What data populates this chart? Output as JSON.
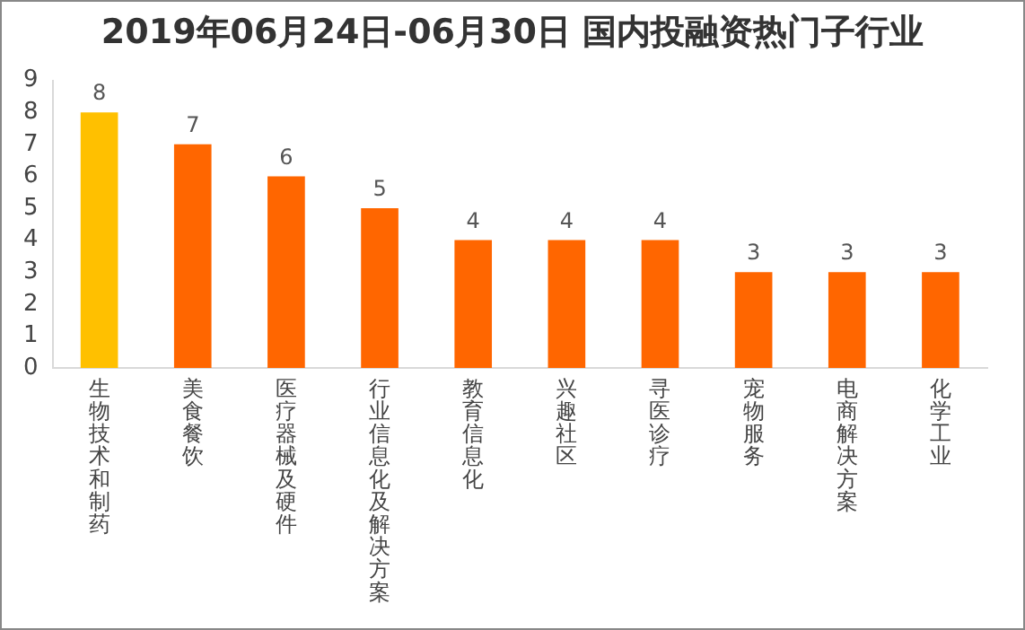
{
  "chart_data": {
    "type": "bar",
    "title": "2019年06月24日-06月30日 国内投融资热门子行业",
    "categories": [
      "生物技术和制药",
      "美食餐饮",
      "医疗器械及硬件",
      "行业信息化及解决方案",
      "教育信息化",
      "兴趣社区",
      "寻医诊疗",
      "宠物服务",
      "电商解决方案",
      "化学工业"
    ],
    "values": [
      8,
      7,
      6,
      5,
      4,
      4,
      4,
      3,
      3,
      3
    ],
    "colors": [
      "#ffc000",
      "#ff6600",
      "#ff6600",
      "#ff6600",
      "#ff6600",
      "#ff6600",
      "#ff6600",
      "#ff6600",
      "#ff6600",
      "#ff6600"
    ],
    "ylim": [
      0,
      9
    ],
    "yticks": [
      0,
      1,
      2,
      3,
      4,
      5,
      6,
      7,
      8,
      9
    ],
    "grid": false,
    "legend": false,
    "data_labels": true
  }
}
